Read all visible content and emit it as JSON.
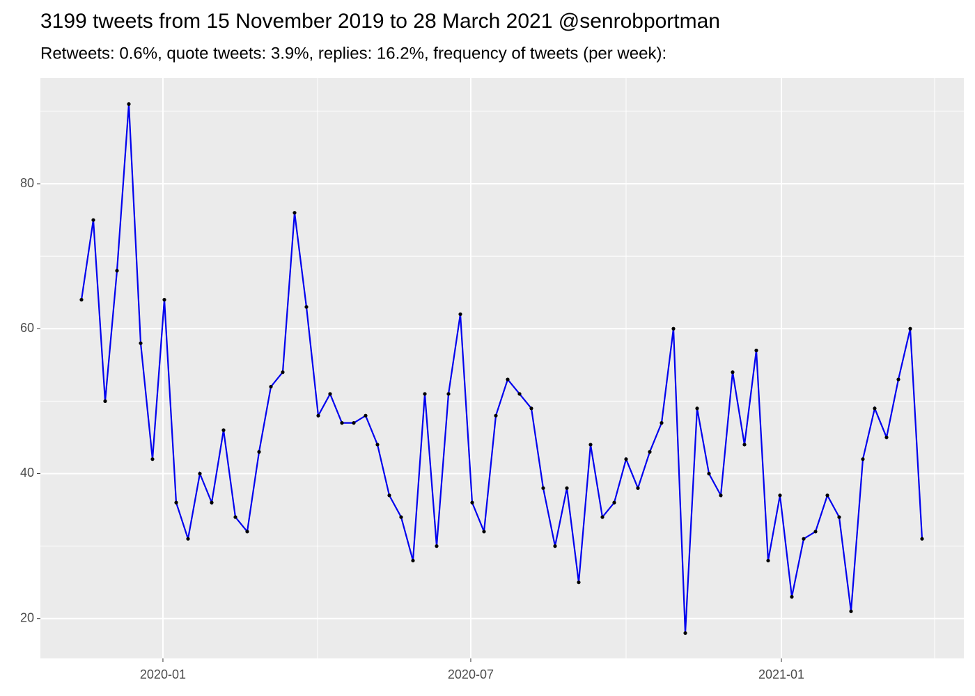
{
  "chart_data": {
    "type": "line",
    "title": "3199 tweets from 15 November 2019 to 28 March 2021 @senrobportman",
    "subtitle": "Retweets: 0.6%, quote tweets: 3.9%, replies: 16.2%, frequency of tweets (per week):",
    "categories": [
      null,
      null,
      null,
      null,
      null,
      null,
      null,
      null,
      null,
      null,
      null,
      null,
      null,
      null,
      null,
      null,
      null,
      null,
      null,
      null,
      null,
      null,
      null,
      null,
      null,
      null,
      null,
      null,
      null,
      null,
      null,
      null,
      null,
      null,
      null,
      null,
      null,
      null,
      null,
      null,
      null,
      null,
      null,
      null,
      null,
      null,
      null,
      null,
      null,
      null,
      null,
      null,
      null,
      null,
      null,
      null,
      null,
      null,
      null,
      null,
      null,
      null,
      null,
      null,
      null,
      null,
      null,
      null,
      null,
      null,
      null,
      null
    ],
    "series": [
      {
        "color": "#0000ee",
        "values": [
          64,
          75,
          50,
          68,
          91,
          58,
          42,
          64,
          36,
          31,
          40,
          36,
          46,
          34,
          32,
          43,
          52,
          54,
          76,
          63,
          48,
          51,
          47,
          47,
          48,
          44,
          37,
          34,
          28,
          51,
          30,
          51,
          62,
          36,
          32,
          48,
          53,
          51,
          49,
          38,
          30,
          38,
          25,
          44,
          34,
          36,
          42,
          38,
          43,
          47,
          60,
          18,
          49,
          40,
          37,
          54,
          44,
          57,
          28,
          37,
          23,
          31,
          32,
          37,
          34,
          21,
          42,
          49,
          45,
          53,
          60,
          31
        ]
      }
    ],
    "xlim": [
      -3.47,
      74.53
    ],
    "xticks": [
      {
        "value": 6.88,
        "label": "2020-01"
      },
      {
        "value": 32.88,
        "label": "2020-07"
      },
      {
        "value": 59.12,
        "label": "2021-01"
      }
    ],
    "xminor": [
      19.94,
      46.0,
      72.06
    ],
    "ylim": [
      14.5,
      94.6
    ],
    "yticks": [
      20,
      40,
      60,
      80
    ],
    "yminor": [
      30,
      50,
      70,
      90
    ],
    "grid": true
  }
}
